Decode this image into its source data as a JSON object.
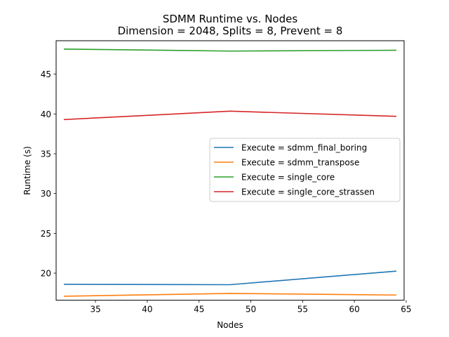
{
  "chart_data": {
    "type": "line",
    "title": "SDMM Runtime vs. Nodes",
    "subtitle": "Dimension = 2048, Splits = 8, Prevent = 8",
    "xlabel": "Nodes",
    "ylabel": "Runtime (s)",
    "xlim": [
      31.2,
      64.8
    ],
    "ylim": [
      16.6,
      49.2
    ],
    "xticks": [
      35,
      40,
      45,
      50,
      55,
      60,
      65
    ],
    "yticks": [
      20,
      25,
      30,
      35,
      40,
      45
    ],
    "x": [
      32,
      48,
      64
    ],
    "grid": false,
    "legend_position": "center-right",
    "series": [
      {
        "name": "Execute = sdmm_final_boring",
        "color": "#1f77b4",
        "values": [
          18.6,
          18.55,
          20.25
        ]
      },
      {
        "name": "Execute = sdmm_transpose",
        "color": "#ff7f0e",
        "values": [
          17.1,
          17.45,
          17.25
        ]
      },
      {
        "name": "Execute = single_core",
        "color": "#2ca02c",
        "values": [
          48.15,
          47.9,
          48.0
        ]
      },
      {
        "name": "Execute = single_core_strassen",
        "color": "#d62728",
        "values": [
          39.3,
          40.35,
          39.7
        ]
      }
    ]
  }
}
